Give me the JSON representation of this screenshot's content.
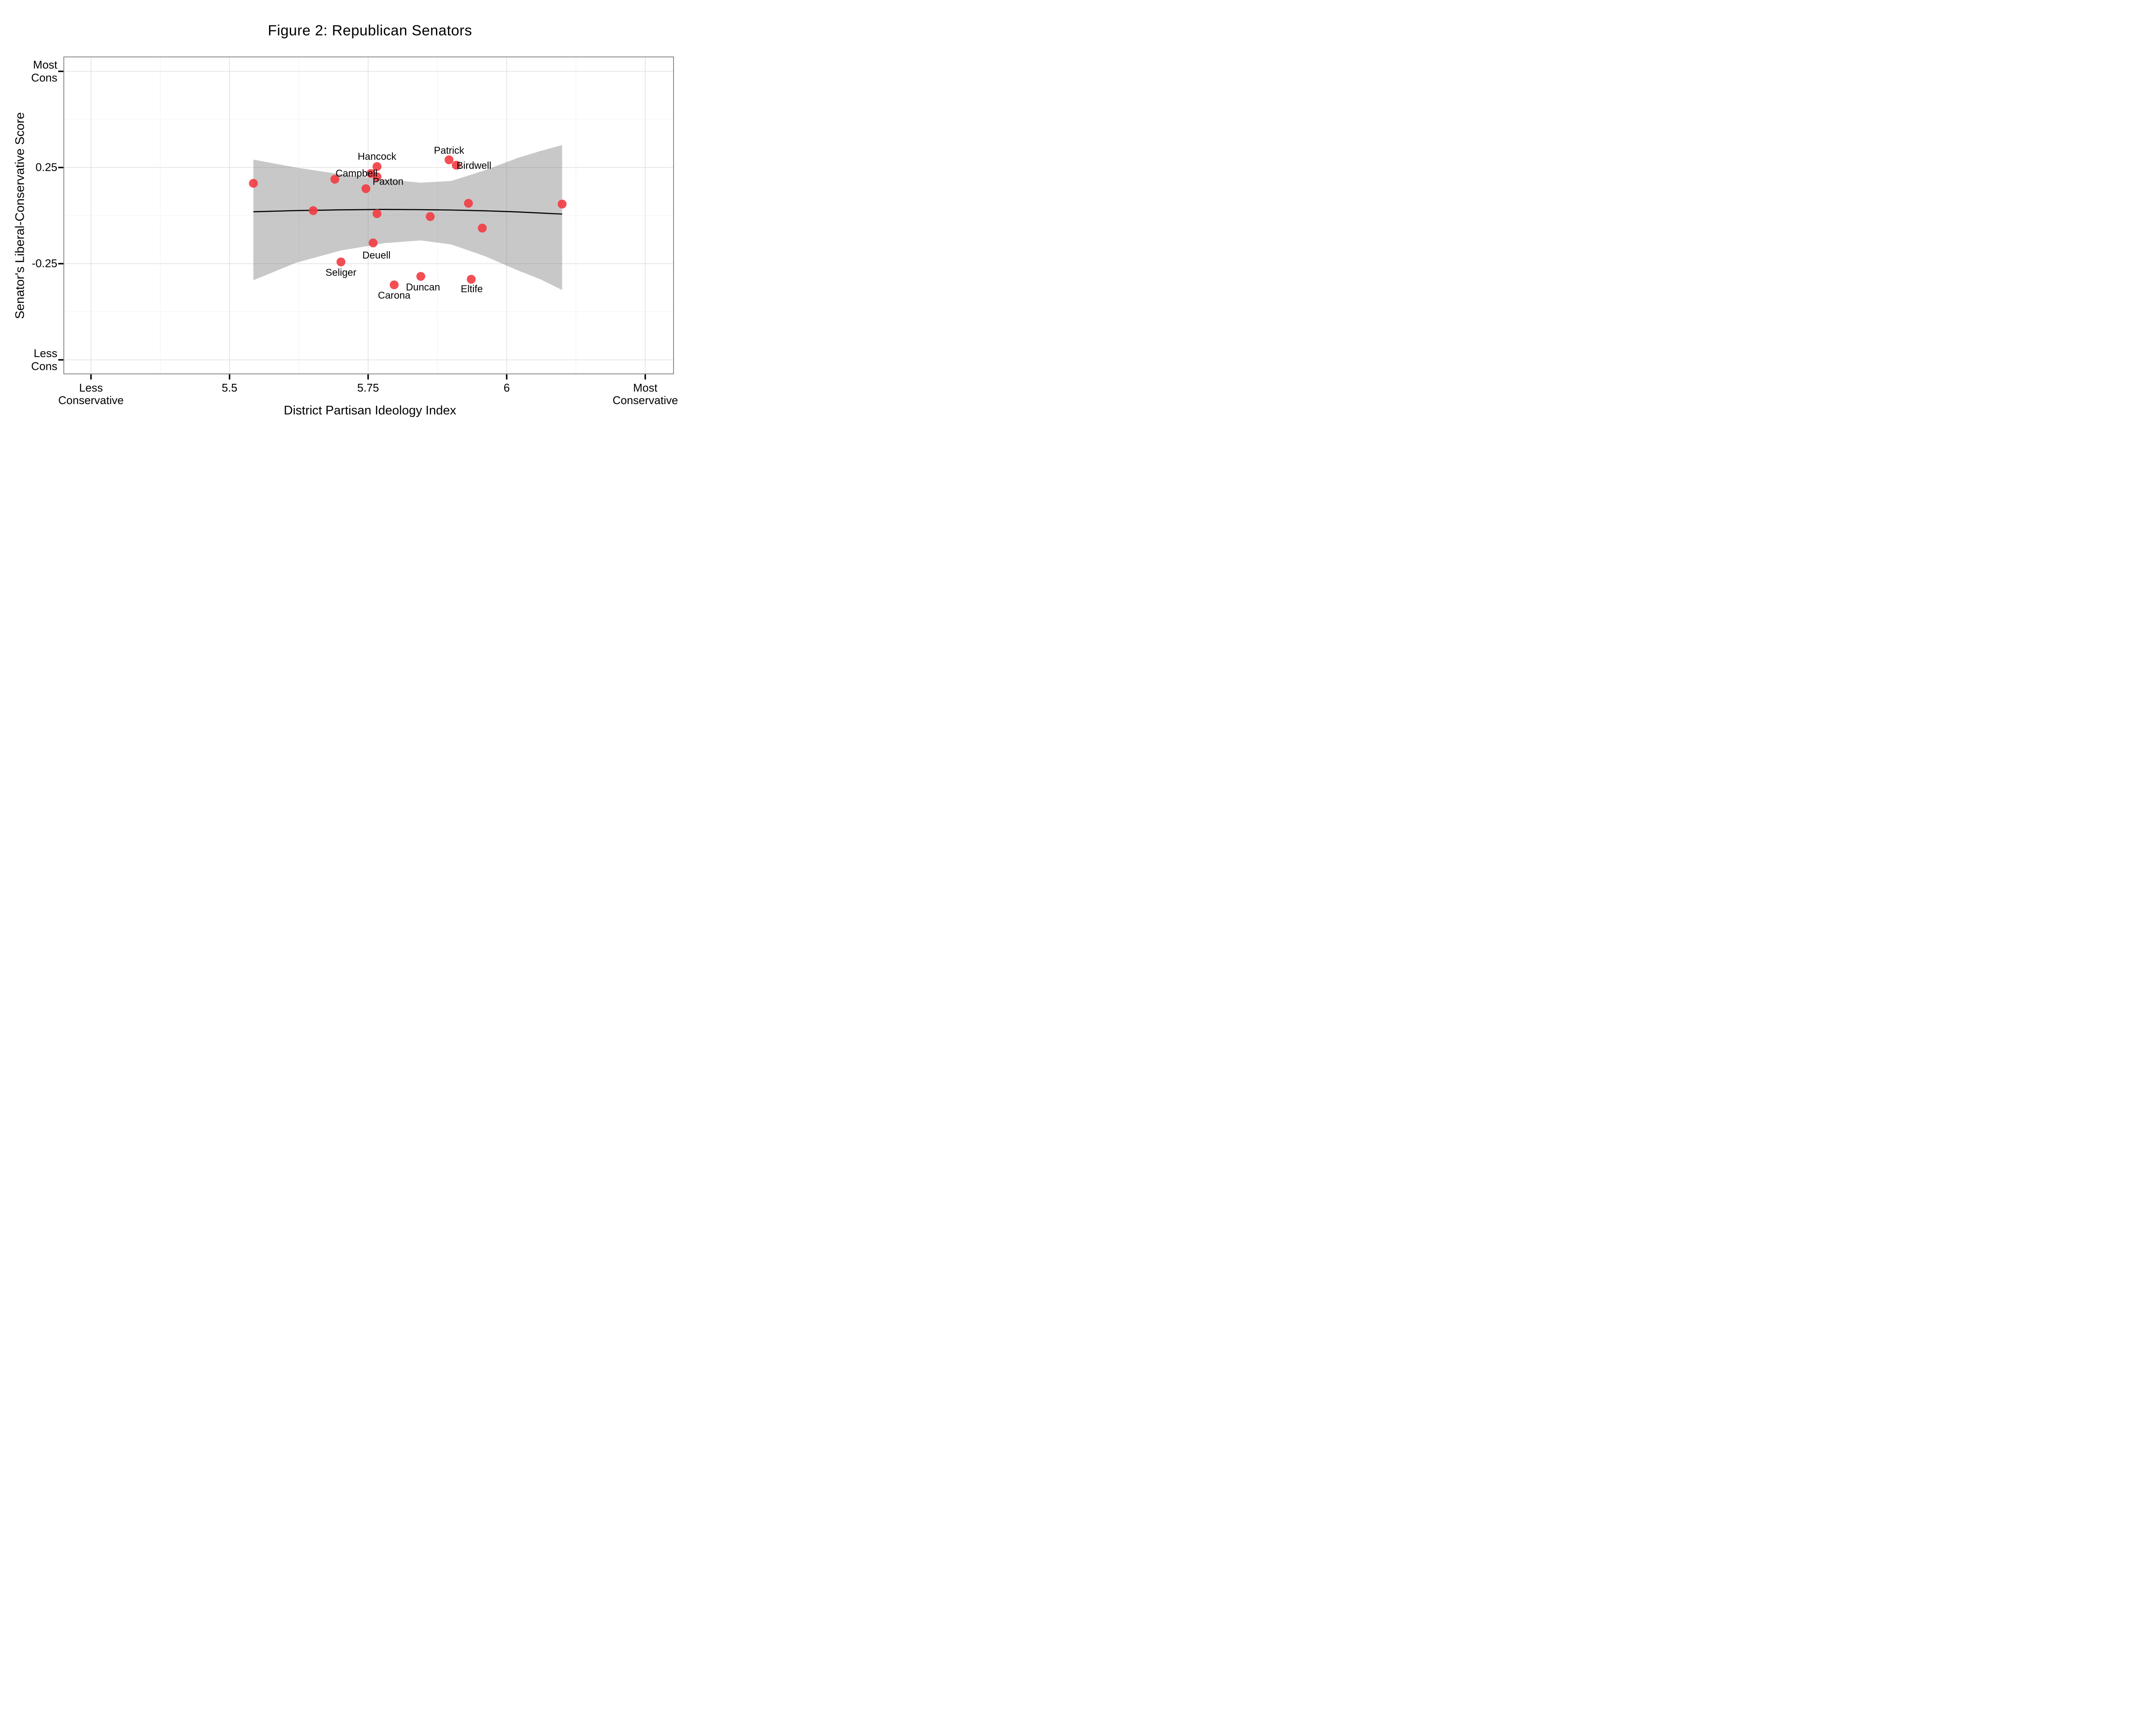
{
  "title": "Figure 2: Republican Senators",
  "chart_data": {
    "type": "scatter",
    "title": "Figure 2: Republican Senators",
    "xlabel": "District Partisan Ideology Index",
    "ylabel": "Senator's Liberal-Conservative Score",
    "xlim": [
      5.201,
      6.301
    ],
    "ylim": [
      -0.823,
      0.825
    ],
    "grid": "major and minor gridlines on white panel",
    "legend": "none",
    "x_ticks": [
      {
        "value": 5.25,
        "label": "Less\nConservative"
      },
      {
        "value": 5.5,
        "label": "5.5"
      },
      {
        "value": 5.75,
        "label": "5.75"
      },
      {
        "value": 6.0,
        "label": "6"
      },
      {
        "value": 6.25,
        "label": "Most\nConservative"
      }
    ],
    "y_ticks": [
      {
        "value": 0.75,
        "label": "Most\nCons"
      },
      {
        "value": 0.25,
        "label": "0.25"
      },
      {
        "value": -0.25,
        "label": "-0.25"
      },
      {
        "value": -0.75,
        "label": "Less\nCons"
      }
    ],
    "x_minor": [
      5.375,
      5.625,
      5.875,
      6.125
    ],
    "y_minor": [
      0.5,
      0.0,
      -0.5
    ],
    "points": [
      {
        "x": 5.543,
        "y": 0.168,
        "senator": null
      },
      {
        "x": 5.651,
        "y": 0.026,
        "senator": null
      },
      {
        "x": 5.69,
        "y": 0.189,
        "senator": null
      },
      {
        "x": 5.746,
        "y": 0.14,
        "senator": null
      },
      {
        "x": 5.755,
        "y": 0.219,
        "senator": "Campbell"
      },
      {
        "x": 5.766,
        "y": 0.255,
        "senator": "Hancock"
      },
      {
        "x": 5.766,
        "y": 0.202,
        "senator": "Paxton"
      },
      {
        "x": 5.766,
        "y": 0.01,
        "senator": null
      },
      {
        "x": 5.759,
        "y": -0.142,
        "senator": "Deuell"
      },
      {
        "x": 5.701,
        "y": -0.241,
        "senator": "Seliger"
      },
      {
        "x": 5.797,
        "y": -0.36,
        "senator": "Carona"
      },
      {
        "x": 5.845,
        "y": -0.316,
        "senator": "Duncan"
      },
      {
        "x": 5.862,
        "y": -0.005,
        "senator": null
      },
      {
        "x": 5.896,
        "y": 0.29,
        "senator": "Patrick"
      },
      {
        "x": 5.909,
        "y": 0.262,
        "senator": "Birdwell"
      },
      {
        "x": 5.931,
        "y": 0.064,
        "senator": null
      },
      {
        "x": 5.936,
        "y": -0.331,
        "senator": "Eltife"
      },
      {
        "x": 5.956,
        "y": -0.065,
        "senator": null
      },
      {
        "x": 6.1,
        "y": 0.06,
        "senator": null
      }
    ],
    "point_labels": [
      {
        "text": "Hancock",
        "x": 5.766,
        "y": 0.306
      },
      {
        "text": "Campbell",
        "x": 5.729,
        "y": 0.22
      },
      {
        "text": "Paxton",
        "x": 5.786,
        "y": 0.177
      },
      {
        "text": "Patrick",
        "x": 5.896,
        "y": 0.338
      },
      {
        "text": "Birdwell",
        "x": 5.941,
        "y": 0.261
      },
      {
        "text": "Deuell",
        "x": 5.765,
        "y": -0.207
      },
      {
        "text": "Seliger",
        "x": 5.701,
        "y": -0.297
      },
      {
        "text": "Carona",
        "x": 5.797,
        "y": -0.415
      },
      {
        "text": "Duncan",
        "x": 5.849,
        "y": -0.373
      },
      {
        "text": "Eltife",
        "x": 5.937,
        "y": -0.381
      }
    ],
    "trend_line": [
      {
        "x": 5.543,
        "y": 0.02
      },
      {
        "x": 5.62,
        "y": 0.026
      },
      {
        "x": 5.7,
        "y": 0.03
      },
      {
        "x": 5.78,
        "y": 0.032
      },
      {
        "x": 5.845,
        "y": 0.031
      },
      {
        "x": 5.9,
        "y": 0.029
      },
      {
        "x": 5.96,
        "y": 0.025
      },
      {
        "x": 6.02,
        "y": 0.019
      },
      {
        "x": 6.1,
        "y": 0.008
      }
    ],
    "confidence_band": {
      "x": [
        5.543,
        5.62,
        5.7,
        5.78,
        5.845,
        5.9,
        5.96,
        6.02,
        6.06,
        6.1
      ],
      "upper": [
        0.291,
        0.25,
        0.215,
        0.188,
        0.171,
        0.18,
        0.235,
        0.3,
        0.335,
        0.367
      ],
      "lower": [
        -0.336,
        -0.245,
        -0.182,
        -0.143,
        -0.129,
        -0.15,
        -0.21,
        -0.285,
        -0.33,
        -0.387
      ]
    },
    "colors": {
      "point": "#F23B41",
      "band": "#CBCBCB",
      "trend": "#000000",
      "grid_major": "#E2E2E2",
      "grid_minor": "#F0F0F0",
      "panel_border": "#8C8C8C",
      "tick": "#000000",
      "text": "#000000"
    }
  }
}
